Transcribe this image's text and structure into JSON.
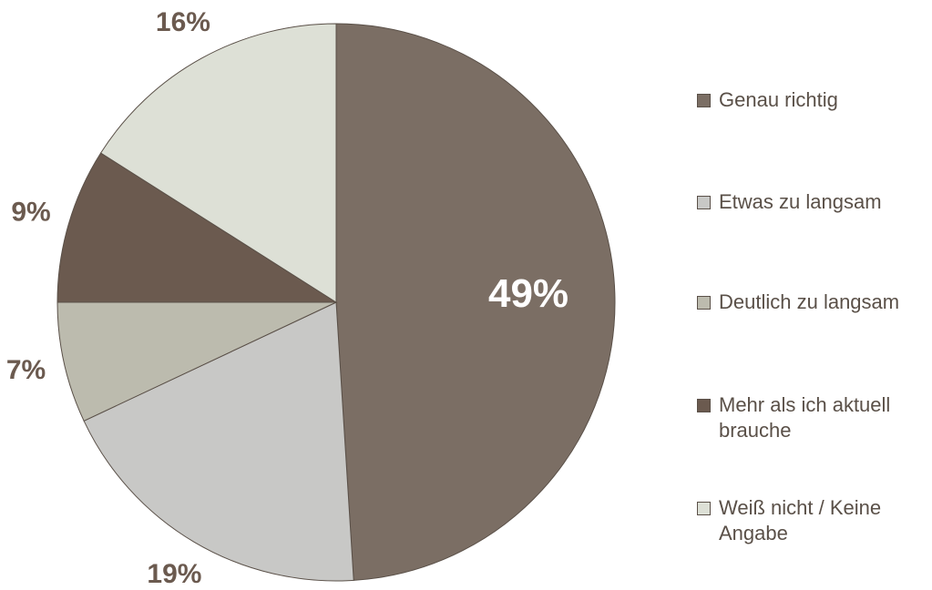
{
  "chart_data": {
    "type": "pie",
    "categories": [
      "Genau richtig",
      "Etwas zu langsam",
      "Deutlich zu langsam",
      "Mehr als ich aktuell brauche",
      "Weiß nicht / Keine Angabe"
    ],
    "values": [
      49,
      19,
      7,
      9,
      16
    ],
    "value_labels": [
      "49%",
      "19%",
      "7%",
      "9%",
      "16%"
    ],
    "colors": [
      "#7b6e64",
      "#c8c8c6",
      "#bcbbae",
      "#6b5a4f",
      "#dde0d6"
    ],
    "legend": "right"
  }
}
